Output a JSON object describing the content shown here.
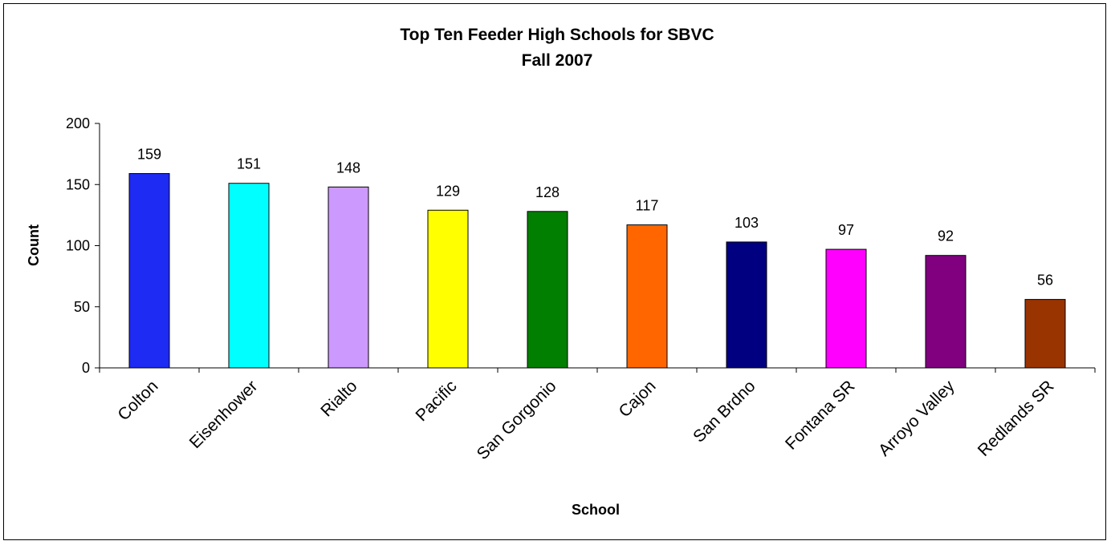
{
  "chart_data": {
    "type": "bar",
    "title": "Top Ten Feeder High Schools for SBVC",
    "subtitle": "Fall 2007",
    "xlabel": "School",
    "ylabel": "Count",
    "ylim": [
      0,
      200
    ],
    "yticks": [
      "0",
      "50",
      "100",
      "150",
      "200"
    ],
    "grid": false,
    "legend": "none",
    "categories": [
      "Colton",
      "Eisenhower",
      "Rialto",
      "Pacific",
      "San Gorgonio",
      "Cajon",
      "San Brdno",
      "Fontana SR",
      "Arroyo Valley",
      "Redlands SR"
    ],
    "values": [
      159,
      151,
      148,
      129,
      128,
      117,
      103,
      97,
      92,
      56
    ],
    "data_labels": [
      "159",
      "151",
      "148",
      "129",
      "128",
      "117",
      "103",
      "97",
      "92",
      "56"
    ],
    "colors": [
      "#1e2bf2",
      "#00ffff",
      "#cc99ff",
      "#ffff00",
      "#007f00",
      "#ff6600",
      "#000080",
      "#ff00ff",
      "#800080",
      "#993300"
    ]
  }
}
